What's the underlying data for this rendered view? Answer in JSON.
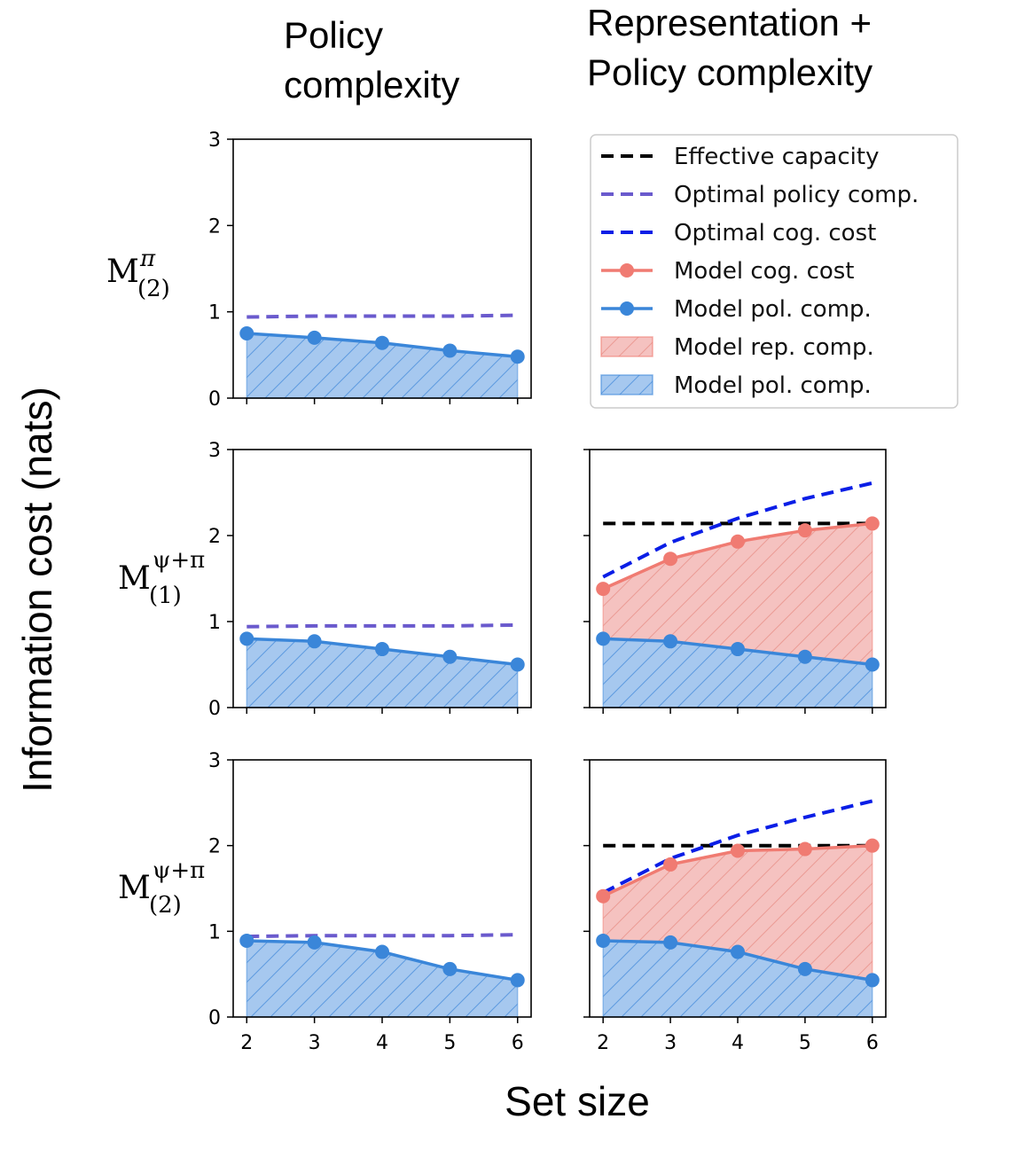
{
  "columns": {
    "left": [
      "Policy",
      "complexity"
    ],
    "right": [
      "Representation +",
      "Policy complexity"
    ]
  },
  "ylabel": "Information cost (nats)",
  "xlabel": "Set size",
  "row_labels": [
    {
      "base": "M",
      "sup": "π",
      "sub": "(2)"
    },
    {
      "base": "M",
      "sup": "ψ+π",
      "sub": "(1)"
    },
    {
      "base": "M",
      "sup": "ψ+π",
      "sub": "(2)"
    }
  ],
  "legend": [
    {
      "label": "Effective capacity",
      "kind": "dash",
      "color": "#000000"
    },
    {
      "label": "Optimal policy comp.",
      "kind": "dash",
      "color": "#6a5acd"
    },
    {
      "label": "Optimal cog. cost",
      "kind": "dash",
      "color": "#0a1ee6"
    },
    {
      "label": "Model cog. cost",
      "kind": "line-marker",
      "color": "#f07b72"
    },
    {
      "label": "Model pol. comp.",
      "kind": "line-marker",
      "color": "#3a86d9"
    },
    {
      "label": "Model rep. comp.",
      "kind": "patch",
      "color": "#f5c2c0",
      "edge": "#f07b72"
    },
    {
      "label": "Model pol. comp.",
      "kind": "patch",
      "color": "#a6c8ef",
      "edge": "#3a86d9"
    }
  ],
  "colors": {
    "effective_capacity": "#000000",
    "optimal_policy": "#6a5acd",
    "optimal_cog": "#0a1ee6",
    "model_cog": "#f07b72",
    "model_pol": "#3a86d9",
    "rep_fill": "#f5c2c0",
    "pol_fill": "#a6c8ef"
  },
  "chart_data": [
    {
      "type": "area",
      "panel": "row1-left",
      "x": [
        2,
        3,
        4,
        5,
        6
      ],
      "xlim": [
        1.8,
        6.2
      ],
      "ylim": [
        0,
        3
      ],
      "xticks": [
        2,
        3,
        4,
        5,
        6
      ],
      "yticks": [
        0,
        1,
        2,
        3
      ],
      "show_xtick_labels": false,
      "show_ytick_labels": true,
      "series": [
        {
          "name": "Optimal policy comp.",
          "values": [
            0.94,
            0.95,
            0.95,
            0.95,
            0.96
          ]
        },
        {
          "name": "Model pol. comp.",
          "values": [
            0.75,
            0.7,
            0.64,
            0.55,
            0.48
          ]
        }
      ]
    },
    {
      "type": "area",
      "panel": "row2-left",
      "x": [
        2,
        3,
        4,
        5,
        6
      ],
      "xlim": [
        1.8,
        6.2
      ],
      "ylim": [
        0,
        3
      ],
      "xticks": [
        2,
        3,
        4,
        5,
        6
      ],
      "yticks": [
        0,
        1,
        2,
        3
      ],
      "show_xtick_labels": false,
      "show_ytick_labels": true,
      "series": [
        {
          "name": "Optimal policy comp.",
          "values": [
            0.94,
            0.95,
            0.95,
            0.95,
            0.96
          ]
        },
        {
          "name": "Model pol. comp.",
          "values": [
            0.8,
            0.77,
            0.68,
            0.59,
            0.5
          ]
        }
      ]
    },
    {
      "type": "area",
      "panel": "row2-right",
      "x": [
        2,
        3,
        4,
        5,
        6
      ],
      "xlim": [
        1.8,
        6.2
      ],
      "ylim": [
        0,
        3
      ],
      "xticks": [
        2,
        3,
        4,
        5,
        6
      ],
      "yticks": [
        0,
        1,
        2,
        3
      ],
      "show_xtick_labels": false,
      "show_ytick_labels": false,
      "series": [
        {
          "name": "Effective capacity",
          "values": [
            2.14,
            2.14,
            2.14,
            2.14,
            2.14
          ]
        },
        {
          "name": "Optimal cog. cost",
          "values": [
            1.52,
            1.92,
            2.2,
            2.43,
            2.61
          ]
        },
        {
          "name": "Model cog. cost",
          "values": [
            1.38,
            1.73,
            1.93,
            2.06,
            2.14
          ]
        },
        {
          "name": "Model pol. comp.",
          "values": [
            0.8,
            0.77,
            0.68,
            0.59,
            0.5
          ]
        }
      ]
    },
    {
      "type": "area",
      "panel": "row3-left",
      "x": [
        2,
        3,
        4,
        5,
        6
      ],
      "xlim": [
        1.8,
        6.2
      ],
      "ylim": [
        0,
        3
      ],
      "xticks": [
        2,
        3,
        4,
        5,
        6
      ],
      "yticks": [
        0,
        1,
        2,
        3
      ],
      "show_xtick_labels": true,
      "show_ytick_labels": true,
      "series": [
        {
          "name": "Optimal policy comp.",
          "values": [
            0.94,
            0.95,
            0.95,
            0.95,
            0.96
          ]
        },
        {
          "name": "Model pol. comp.",
          "values": [
            0.89,
            0.87,
            0.76,
            0.56,
            0.43
          ]
        }
      ]
    },
    {
      "type": "area",
      "panel": "row3-right",
      "x": [
        2,
        3,
        4,
        5,
        6
      ],
      "xlim": [
        1.8,
        6.2
      ],
      "ylim": [
        0,
        3
      ],
      "xticks": [
        2,
        3,
        4,
        5,
        6
      ],
      "yticks": [
        0,
        1,
        2,
        3
      ],
      "show_xtick_labels": true,
      "show_ytick_labels": false,
      "series": [
        {
          "name": "Effective capacity",
          "values": [
            2.0,
            2.0,
            2.0,
            2.0,
            2.0
          ]
        },
        {
          "name": "Optimal cog. cost",
          "values": [
            1.45,
            1.85,
            2.12,
            2.33,
            2.52
          ]
        },
        {
          "name": "Model cog. cost",
          "values": [
            1.41,
            1.78,
            1.94,
            1.96,
            2.0
          ]
        },
        {
          "name": "Model pol. comp.",
          "values": [
            0.89,
            0.87,
            0.76,
            0.56,
            0.43
          ]
        }
      ]
    }
  ]
}
